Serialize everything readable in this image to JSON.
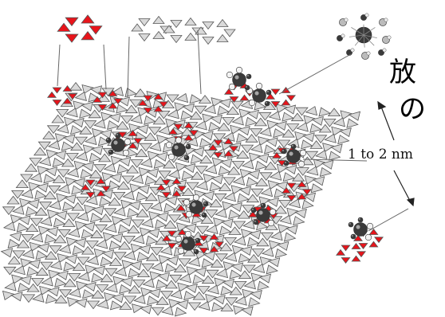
{
  "caption": {
    "line1": "放",
    "line2": "の"
  },
  "scale_bar": {
    "label": "1 to 2 nm"
  },
  "colors": {
    "tetra_fill": "#d9d9d9",
    "tetra_edge": "#555555",
    "highlight": "#e8141b",
    "atom_dark": "#3a3a3a",
    "atom_light": "#f2f2f2"
  },
  "structure": {
    "description_items": [
      "sheet-of-linked-tetrahedra",
      "red-hexagonal-ring-detail",
      "grey-ring-chain-detail",
      "adsorbed-molecule-cluster-detail"
    ]
  }
}
